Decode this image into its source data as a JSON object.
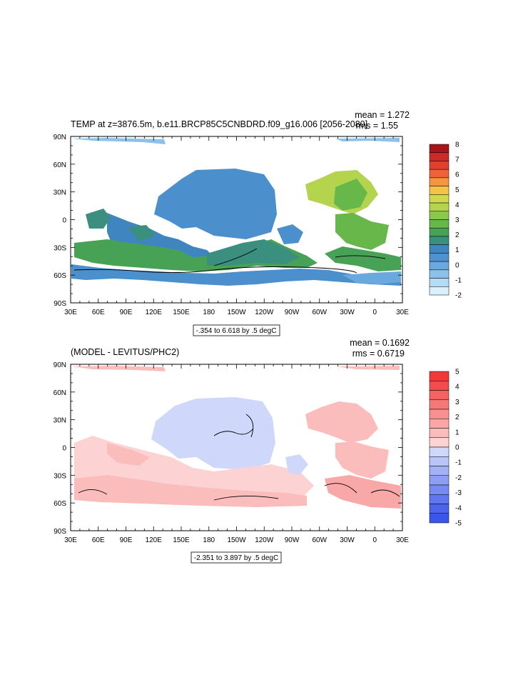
{
  "panels": [
    {
      "title": "TEMP at z=3876.5m, b.e11.BRCP85C5CNBDRD.f09_g16.006 [2056-2080]",
      "mean": "mean = 1.272",
      "rms": "rms = 1.55",
      "range_label": "-.354 to 6.618 by .5 degC",
      "lat_ticks": [
        "90N",
        "60N",
        "30N",
        "0",
        "30S",
        "60S",
        "90S"
      ],
      "lon_ticks": [
        "30E",
        "60E",
        "90E",
        "120E",
        "150E",
        "180",
        "150W",
        "120W",
        "90W",
        "60W",
        "30W",
        "0",
        "30E"
      ],
      "colorbar": {
        "labels": [
          "8",
          "7",
          "6",
          "5",
          "4",
          "3",
          "2",
          "1",
          "0",
          "-1",
          "-2"
        ],
        "colors": [
          "#a8141a",
          "#cc2a26",
          "#e0412f",
          "#ef6338",
          "#f69541",
          "#f3c247",
          "#cfd94d",
          "#b3d44c",
          "#8cc84a",
          "#67b74a",
          "#48a255",
          "#3b8f7e",
          "#3f86c0",
          "#4e93cf",
          "#69a9de",
          "#8cc2ea",
          "#b4dcf5",
          "#dcf0fb"
        ]
      }
    },
    {
      "title": "(MODEL - LEVITUS/PHC2)",
      "mean": "mean = 0.1692",
      "rms": "rms = 0.6719",
      "range_label": "-2.351 to 3.897 by .5 degC",
      "lat_ticks": [
        "90N",
        "60N",
        "30N",
        "0",
        "30S",
        "60S",
        "90S"
      ],
      "lon_ticks": [
        "30E",
        "60E",
        "90E",
        "120E",
        "150E",
        "180",
        "150W",
        "120W",
        "90W",
        "60W",
        "30W",
        "0",
        "30E"
      ],
      "colorbar": {
        "labels": [
          "5",
          "4",
          "3",
          "2",
          "1",
          "0",
          "-1",
          "-2",
          "-3",
          "-4",
          "-5"
        ],
        "colors": [
          "#f23838",
          "#f44c4c",
          "#f56262",
          "#f77878",
          "#f98f8f",
          "#faa6a6",
          "#fbbcbc",
          "#fdd2d2",
          "#cfd8fa",
          "#b9c5f8",
          "#a3b1f6",
          "#8d9ef4",
          "#778af2",
          "#6177f0",
          "#4b63ee",
          "#3a55ec"
        ]
      }
    }
  ]
}
